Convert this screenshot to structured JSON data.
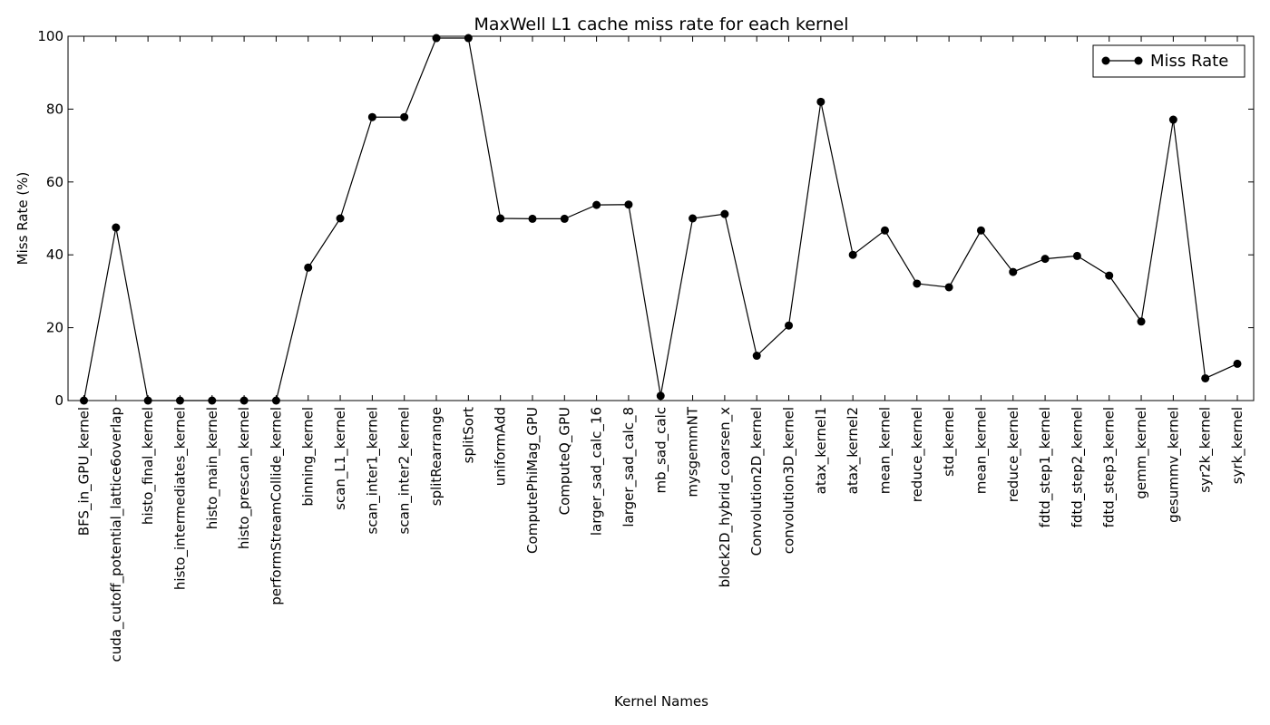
{
  "chart_data": {
    "type": "line",
    "title": "MaxWell L1 cache miss rate for each kernel",
    "xlabel": "Kernel Names",
    "ylabel": "Miss Rate (%)",
    "ylim": [
      0,
      100
    ],
    "yticks": [
      0,
      20,
      40,
      60,
      80,
      100
    ],
    "grid": false,
    "legend_position": "top-right",
    "categories": [
      "BFS_in_GPU_kernel",
      "cuda_cutoff_potential_lattice6overlap",
      "histo_final_kernel",
      "histo_intermediates_kernel",
      "histo_main_kernel",
      "histo_prescan_kernel",
      "performStreamCollide_kernel",
      "binning_kernel",
      "scan_L1_kernel",
      "scan_inter1_kernel",
      "scan_inter2_kernel",
      "splitRearrange",
      "splitSort",
      "uniformAdd",
      "ComputePhiMag_GPU",
      "ComputeQ_GPU",
      "larger_sad_calc_16",
      "larger_sad_calc_8",
      "mb_sad_calc",
      "mysgemmNT",
      "block2D_hybrid_coarsen_x",
      "Convolution2D_kernel",
      "convolution3D_kernel",
      "atax_kernel1",
      "atax_kernel2",
      "mean_kernel",
      "reduce_kernel",
      "std_kernel",
      "mean_kernel",
      "reduce_kernel",
      "fdtd_step1_kernel",
      "fdtd_step2_kernel",
      "fdtd_step3_kernel",
      "gemm_kernel",
      "gesummv_kernel",
      "syr2k_kernel",
      "syrk_kernel"
    ],
    "series": [
      {
        "name": "Miss Rate",
        "color": "#000000",
        "marker": "circle",
        "values": [
          0,
          47.5,
          0,
          0,
          0,
          0,
          0,
          36.5,
          50,
          77.8,
          77.8,
          99.5,
          99.5,
          50,
          49.9,
          49.9,
          53.7,
          53.8,
          1.3,
          50,
          51.2,
          12.3,
          20.6,
          82,
          40,
          46.7,
          32.1,
          31.1,
          46.7,
          35.3,
          38.9,
          39.7,
          34.3,
          21.7,
          77.1,
          6.1,
          10.1
        ]
      }
    ]
  }
}
